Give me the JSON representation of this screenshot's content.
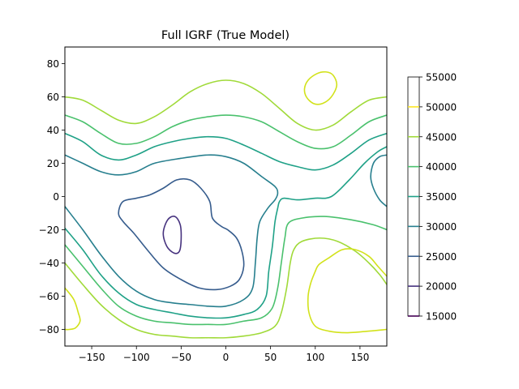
{
  "chart_data": {
    "type": "contour",
    "title": "Full IGRF (True Model)",
    "xlabel": "",
    "ylabel": "",
    "xlim": [
      -180,
      180
    ],
    "ylim": [
      -90,
      90
    ],
    "x_ticks": [
      -150,
      -100,
      -50,
      0,
      50,
      100,
      150
    ],
    "y_ticks": [
      -80,
      -60,
      -40,
      -20,
      0,
      20,
      40,
      60,
      80
    ],
    "grid": false,
    "colorbar": {
      "ticks": [
        15000,
        20000,
        25000,
        30000,
        35000,
        40000,
        45000,
        50000,
        55000
      ],
      "line_colors": {
        "15000": "#440154",
        "20000": "#46327e",
        "25000": "#365c8d",
        "30000": "#277f8e",
        "35000": "#1fa187",
        "40000": "#4ac16d",
        "45000": "#a0da39",
        "50000": "#fde725",
        "55000": "#fde725"
      }
    },
    "levels": [
      {
        "value": 20000,
        "color": "#46327e",
        "paths": [
          [
            [
              -70,
              -22
            ],
            [
              -65,
              -14
            ],
            [
              -57,
              -12
            ],
            [
              -51,
              -17
            ],
            [
              -50,
              -26
            ],
            [
              -52,
              -33
            ],
            [
              -58,
              -34
            ],
            [
              -66,
              -30
            ],
            [
              -70,
              -22
            ]
          ]
        ]
      },
      {
        "value": 25000,
        "color": "#365c8d",
        "paths": [
          [
            [
              -120,
              -10
            ],
            [
              -115,
              -3
            ],
            [
              -100,
              -1
            ],
            [
              -85,
              1
            ],
            [
              -70,
              5
            ],
            [
              -55,
              10
            ],
            [
              -40,
              10
            ],
            [
              -28,
              5
            ],
            [
              -18,
              -3
            ],
            [
              -15,
              -13
            ],
            [
              -5,
              -18
            ],
            [
              2,
              -20
            ],
            [
              12,
              -25
            ],
            [
              18,
              -33
            ],
            [
              20,
              -42
            ],
            [
              15,
              -50
            ],
            [
              5,
              -54
            ],
            [
              -10,
              -56
            ],
            [
              -30,
              -55
            ],
            [
              -50,
              -50
            ],
            [
              -70,
              -43
            ],
            [
              -88,
              -32
            ],
            [
              -103,
              -22
            ],
            [
              -115,
              -15
            ],
            [
              -120,
              -10
            ]
          ]
        ]
      },
      {
        "value": 30000,
        "color": "#277f8e",
        "paths": [
          [
            [
              -180,
              -6
            ],
            [
              -160,
              -20
            ],
            [
              -140,
              -35
            ],
            [
              -120,
              -48
            ],
            [
              -100,
              -57
            ],
            [
              -80,
              -62
            ],
            [
              -60,
              -64
            ],
            [
              -40,
              -65
            ],
            [
              -20,
              -66
            ],
            [
              0,
              -66
            ],
            [
              20,
              -62
            ],
            [
              30,
              -55
            ],
            [
              33,
              -40
            ],
            [
              35,
              -25
            ],
            [
              38,
              -15
            ],
            [
              47,
              -7
            ],
            [
              55,
              -2
            ],
            [
              58,
              2
            ],
            [
              55,
              6
            ],
            [
              40,
              12
            ],
            [
              20,
              20
            ],
            [
              0,
              24
            ],
            [
              -20,
              25
            ],
            [
              -50,
              23
            ],
            [
              -80,
              20
            ],
            [
              -100,
              15
            ],
            [
              -120,
              13
            ],
            [
              -140,
              15
            ],
            [
              -160,
              20
            ],
            [
              -180,
              25
            ]
          ],
          [
            [
              180,
              25
            ],
            [
              172,
              24
            ],
            [
              165,
              20
            ],
            [
              162,
              12
            ],
            [
              165,
              5
            ],
            [
              172,
              -2
            ],
            [
              180,
              -6
            ]
          ]
        ]
      },
      {
        "value": 35000,
        "color": "#1fa187",
        "paths": [
          [
            [
              -180,
              -19
            ],
            [
              -160,
              -32
            ],
            [
              -140,
              -47
            ],
            [
              -120,
              -58
            ],
            [
              -100,
              -65
            ],
            [
              -80,
              -68
            ],
            [
              -60,
              -70
            ],
            [
              -40,
              -72
            ],
            [
              -20,
              -73
            ],
            [
              0,
              -73
            ],
            [
              20,
              -71
            ],
            [
              35,
              -68
            ],
            [
              45,
              -60
            ],
            [
              48,
              -45
            ],
            [
              52,
              -30
            ],
            [
              55,
              -15
            ],
            [
              58,
              -7
            ],
            [
              60,
              -3
            ],
            [
              65,
              -1
            ],
            [
              80,
              -2
            ],
            [
              100,
              -1
            ],
            [
              118,
              0
            ],
            [
              138,
              10
            ],
            [
              155,
              20
            ],
            [
              170,
              27
            ],
            [
              180,
              30
            ]
          ],
          [
            [
              -180,
              38
            ],
            [
              -160,
              33
            ],
            [
              -140,
              25
            ],
            [
              -120,
              22
            ],
            [
              -100,
              25
            ],
            [
              -80,
              30
            ],
            [
              -60,
              33
            ],
            [
              -40,
              35
            ],
            [
              -20,
              36
            ],
            [
              0,
              35
            ],
            [
              20,
              31
            ],
            [
              40,
              26
            ],
            [
              60,
              21
            ],
            [
              80,
              18
            ],
            [
              100,
              16
            ],
            [
              120,
              19
            ],
            [
              140,
              26
            ],
            [
              160,
              34
            ],
            [
              180,
              38
            ]
          ]
        ]
      },
      {
        "value": 40000,
        "color": "#4ac16d",
        "paths": [
          [
            [
              -180,
              -29
            ],
            [
              -160,
              -42
            ],
            [
              -140,
              -55
            ],
            [
              -120,
              -66
            ],
            [
              -100,
              -72
            ],
            [
              -80,
              -75
            ],
            [
              -60,
              -76
            ],
            [
              -40,
              -77
            ],
            [
              -20,
              -77
            ],
            [
              0,
              -77
            ],
            [
              20,
              -75
            ],
            [
              40,
              -73
            ],
            [
              52,
              -67
            ],
            [
              58,
              -55
            ],
            [
              62,
              -40
            ],
            [
              66,
              -25
            ],
            [
              70,
              -16
            ],
            [
              85,
              -13
            ],
            [
              110,
              -12
            ],
            [
              140,
              -14
            ],
            [
              165,
              -17
            ],
            [
              180,
              -20
            ]
          ],
          [
            [
              -180,
              49
            ],
            [
              -160,
              45
            ],
            [
              -140,
              38
            ],
            [
              -120,
              32
            ],
            [
              -100,
              32
            ],
            [
              -80,
              36
            ],
            [
              -60,
              42
            ],
            [
              -40,
              46
            ],
            [
              -20,
              48
            ],
            [
              0,
              49
            ],
            [
              20,
              48
            ],
            [
              40,
              45
            ],
            [
              60,
              39
            ],
            [
              80,
              33
            ],
            [
              100,
              29
            ],
            [
              120,
              30
            ],
            [
              140,
              37
            ],
            [
              160,
              45
            ],
            [
              180,
              49
            ]
          ]
        ]
      },
      {
        "value": 45000,
        "color": "#a0da39",
        "paths": [
          [
            [
              -180,
              -40
            ],
            [
              -160,
              -53
            ],
            [
              -140,
              -65
            ],
            [
              -120,
              -74
            ],
            [
              -100,
              -80
            ],
            [
              -80,
              -83
            ],
            [
              -60,
              -84
            ],
            [
              -40,
              -85
            ],
            [
              -20,
              -85
            ],
            [
              0,
              -85
            ],
            [
              20,
              -84
            ],
            [
              40,
              -82
            ],
            [
              55,
              -78
            ],
            [
              62,
              -70
            ],
            [
              68,
              -55
            ],
            [
              72,
              -40
            ],
            [
              76,
              -32
            ],
            [
              85,
              -27
            ],
            [
              105,
              -25
            ],
            [
              125,
              -27
            ],
            [
              145,
              -33
            ],
            [
              160,
              -40
            ],
            [
              172,
              -47
            ],
            [
              180,
              -53
            ]
          ],
          [
            [
              -180,
              60
            ],
            [
              -160,
              58
            ],
            [
              -140,
              52
            ],
            [
              -120,
              46
            ],
            [
              -100,
              44
            ],
            [
              -80,
              48
            ],
            [
              -60,
              55
            ],
            [
              -40,
              63
            ],
            [
              -20,
              68
            ],
            [
              0,
              70
            ],
            [
              20,
              68
            ],
            [
              40,
              62
            ],
            [
              60,
              53
            ],
            [
              80,
              44
            ],
            [
              100,
              40
            ],
            [
              120,
              43
            ],
            [
              140,
              51
            ],
            [
              160,
              58
            ],
            [
              180,
              60
            ]
          ]
        ]
      },
      {
        "value": 50000,
        "color": "#d2e21b",
        "paths": [
          [
            [
              -180,
              -55
            ],
            [
              -170,
              -62
            ],
            [
              -165,
              -70
            ],
            [
              -163,
              -75
            ],
            [
              -168,
              -79
            ],
            [
              -175,
              -80
            ],
            [
              -180,
              -80
            ]
          ],
          [
            [
              100,
              -45
            ],
            [
              95,
              -52
            ],
            [
              92,
              -60
            ],
            [
              93,
              -70
            ],
            [
              100,
              -78
            ],
            [
              115,
              -81
            ],
            [
              135,
              -82
            ],
            [
              160,
              -81
            ],
            [
              180,
              -80
            ]
          ],
          [
            [
              180,
              -48
            ],
            [
              170,
              -42
            ],
            [
              160,
              -36
            ],
            [
              145,
              -32
            ],
            [
              130,
              -32
            ],
            [
              115,
              -37
            ],
            [
              104,
              -41
            ],
            [
              100,
              -45
            ]
          ],
          [
            [
              88,
              65
            ],
            [
              92,
              70
            ],
            [
              102,
              74
            ],
            [
              112,
              75
            ],
            [
              120,
              73
            ],
            [
              124,
              67
            ],
            [
              118,
              60
            ],
            [
              108,
              56
            ],
            [
              98,
              56
            ],
            [
              90,
              60
            ],
            [
              88,
              65
            ]
          ]
        ]
      }
    ]
  }
}
